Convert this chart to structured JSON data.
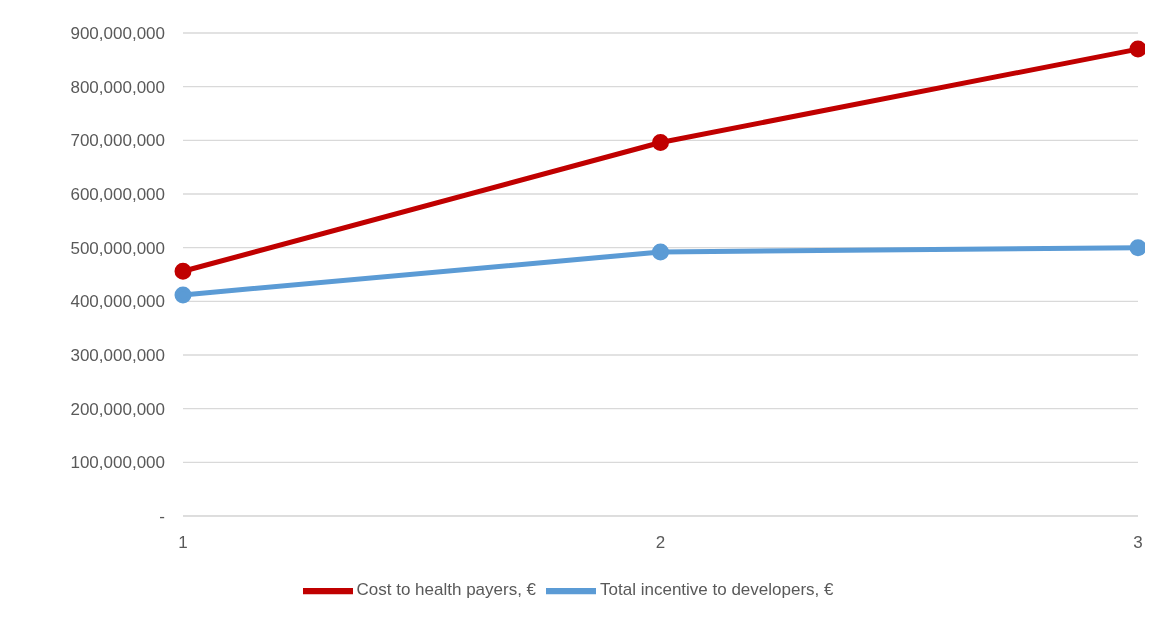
{
  "chart_data": {
    "type": "line",
    "categories": [
      "1",
      "2",
      "3"
    ],
    "series": [
      {
        "name": "Cost to health payers, €",
        "color": "#c00000",
        "values": [
          456000000,
          696000000,
          870000000
        ]
      },
      {
        "name": "Total incentive to developers, €",
        "color": "#5b9bd5",
        "values": [
          412000000,
          492000000,
          500000000
        ]
      }
    ],
    "ylim": [
      0,
      900000000
    ],
    "yticks": [
      {
        "value": 0,
        "label": "-"
      },
      {
        "value": 100000000,
        "label": "100,000,000"
      },
      {
        "value": 200000000,
        "label": "200,000,000"
      },
      {
        "value": 300000000,
        "label": "300,000,000"
      },
      {
        "value": 400000000,
        "label": "400,000,000"
      },
      {
        "value": 500000000,
        "label": "500,000,000"
      },
      {
        "value": 600000000,
        "label": "600,000,000"
      },
      {
        "value": 700000000,
        "label": "700,000,000"
      },
      {
        "value": 800000000,
        "label": "800,000,000"
      },
      {
        "value": 900000000,
        "label": "900,000,000"
      }
    ],
    "grid": "y",
    "legend": "bottom",
    "marker": "circle",
    "line_style": "solid"
  }
}
